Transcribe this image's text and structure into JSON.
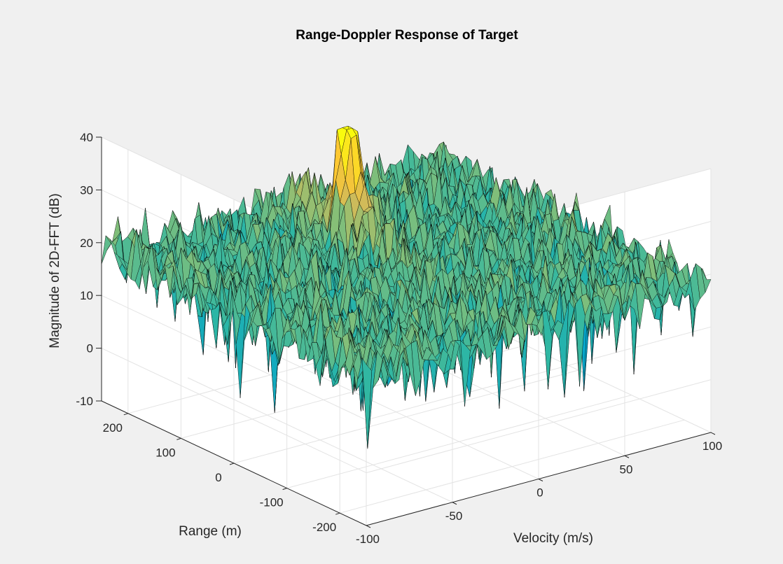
{
  "chart_data": {
    "type": "surface",
    "title": "Range-Doppler Response of Target",
    "xlabel": "Velocity (m/s)",
    "ylabel": "Range (m)",
    "zlabel": "Magnitude of 2D-FFT (dB)",
    "xlim": [
      -100,
      100
    ],
    "ylim": [
      -250,
      250
    ],
    "zlim": [
      -10,
      40
    ],
    "x_ticks": [
      -100,
      -50,
      0,
      50,
      100
    ],
    "y_ticks": [
      -200,
      -100,
      0,
      100,
      200
    ],
    "z_ticks": [
      -10,
      0,
      10,
      20,
      30,
      40
    ],
    "x_tick_labels": [
      "-100",
      "-50",
      "0",
      "50",
      "100"
    ],
    "y_tick_labels": [
      "-200",
      "-100",
      "0",
      "100",
      "200"
    ],
    "z_tick_labels": [
      "-10",
      "0",
      "10",
      "20",
      "30",
      "40"
    ],
    "grid": true,
    "colormap": "parula",
    "noise_floor_db": 18,
    "noise_min_db": -6,
    "peak": {
      "velocity": 0,
      "range": 110,
      "magnitude_db": 38
    },
    "colors": {
      "figure_bg": "#f0f0f0",
      "axes_bg": "#ffffff",
      "grid": "#e3e3e3",
      "axis": "#262626",
      "edge": "#000000",
      "colormap_stops": [
        "#352a87",
        "#0f5cdd",
        "#1481d6",
        "#06a4ca",
        "#2eb7a4",
        "#87bf77",
        "#d1bb59",
        "#fec832",
        "#f9fb0e"
      ]
    }
  }
}
